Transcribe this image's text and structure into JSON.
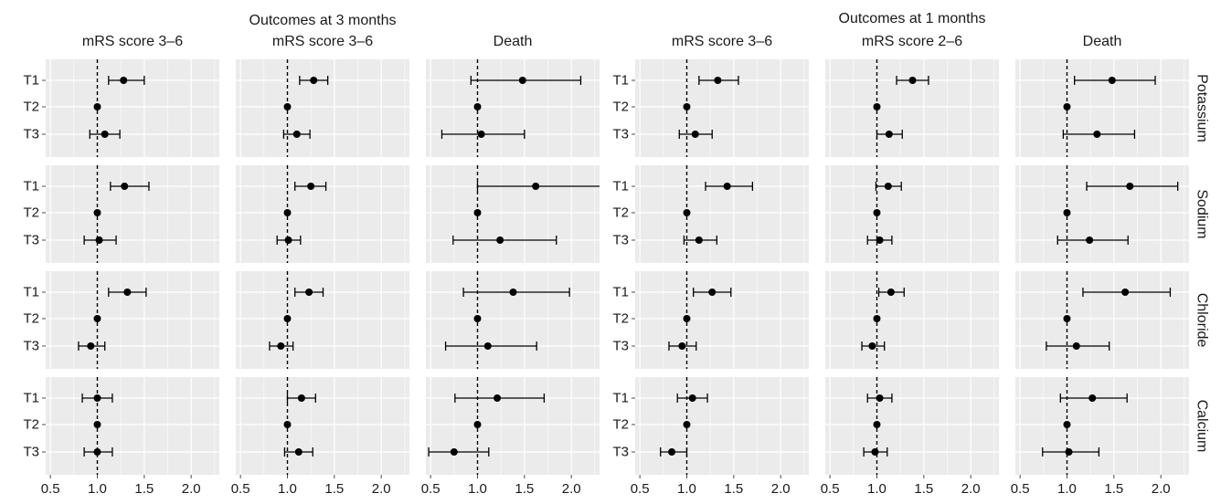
{
  "chart_data": {
    "type": "scatter",
    "subtype": "forest-plot-faceted",
    "group_titles": [
      "Outcomes at 3 months",
      "Outcomes at 1 months"
    ],
    "column_titles": [
      "mRS score 3–6",
      "mRS score 3–6",
      "Death",
      "mRS score 3–6",
      "mRS score 2–6",
      "Death"
    ],
    "row_strips": [
      "Potassium",
      "Sodium",
      "Chloride",
      "Calcium"
    ],
    "categories": [
      "T1",
      "T2",
      "T3"
    ],
    "x_ticks": [
      "0.5",
      "1.0",
      "1.5",
      "2.0"
    ],
    "xlim": [
      0.45,
      2.3
    ],
    "reference_line": 1.0,
    "grid": true,
    "colors": {
      "panel_bg": "#ebebeb",
      "grid": "#ffffff",
      "point": "#000000",
      "ref_line": "#000000",
      "text": "#1a1a1a",
      "tick": "#4d4d4d"
    },
    "panels": [
      [
        [
          [
            1.28,
            1.12,
            1.5
          ],
          [
            1.0,
            1.0,
            1.0
          ],
          [
            1.08,
            0.92,
            1.24
          ]
        ],
        [
          [
            1.29,
            1.14,
            1.55
          ],
          [
            1.0,
            1.0,
            1.0
          ],
          [
            1.02,
            0.86,
            1.2
          ]
        ],
        [
          [
            1.32,
            1.12,
            1.52
          ],
          [
            1.0,
            1.0,
            1.0
          ],
          [
            0.93,
            0.8,
            1.08
          ]
        ],
        [
          [
            1.0,
            0.84,
            1.16
          ],
          [
            1.0,
            1.0,
            1.0
          ],
          [
            1.0,
            0.86,
            1.16
          ]
        ]
      ],
      [
        [
          [
            1.28,
            1.13,
            1.43
          ],
          [
            1.0,
            1.0,
            1.0
          ],
          [
            1.1,
            0.96,
            1.24
          ]
        ],
        [
          [
            1.25,
            1.08,
            1.41
          ],
          [
            1.0,
            1.0,
            1.0
          ],
          [
            1.01,
            0.89,
            1.14
          ]
        ],
        [
          [
            1.23,
            1.08,
            1.38
          ],
          [
            1.0,
            1.0,
            1.0
          ],
          [
            0.93,
            0.81,
            1.06
          ]
        ],
        [
          [
            1.15,
            1.0,
            1.3
          ],
          [
            1.0,
            1.0,
            1.0
          ],
          [
            1.12,
            0.97,
            1.27
          ]
        ]
      ],
      [
        [
          [
            1.48,
            0.93,
            2.1
          ],
          [
            1.0,
            1.0,
            1.0
          ],
          [
            1.04,
            0.62,
            1.5
          ]
        ],
        [
          [
            1.62,
            1.0,
            2.33
          ],
          [
            1.0,
            1.0,
            1.0
          ],
          [
            1.24,
            0.74,
            1.84
          ]
        ],
        [
          [
            1.38,
            0.85,
            1.98
          ],
          [
            1.0,
            1.0,
            1.0
          ],
          [
            1.11,
            0.66,
            1.63
          ]
        ],
        [
          [
            1.21,
            0.76,
            1.71
          ],
          [
            1.0,
            1.0,
            1.0
          ],
          [
            0.75,
            0.48,
            1.12
          ]
        ]
      ],
      [
        [
          [
            1.33,
            1.13,
            1.55
          ],
          [
            1.0,
            1.0,
            1.0
          ],
          [
            1.09,
            0.92,
            1.27
          ]
        ],
        [
          [
            1.43,
            1.2,
            1.7
          ],
          [
            1.0,
            1.0,
            1.0
          ],
          [
            1.13,
            0.97,
            1.32
          ]
        ],
        [
          [
            1.27,
            1.07,
            1.47
          ],
          [
            1.0,
            1.0,
            1.0
          ],
          [
            0.95,
            0.81,
            1.1
          ]
        ],
        [
          [
            1.06,
            0.9,
            1.22
          ],
          [
            1.0,
            1.0,
            1.0
          ],
          [
            0.84,
            0.72,
            1.0
          ]
        ]
      ],
      [
        [
          [
            1.38,
            1.21,
            1.55
          ],
          [
            1.0,
            1.0,
            1.0
          ],
          [
            1.13,
            1.0,
            1.27
          ]
        ],
        [
          [
            1.12,
            0.99,
            1.26
          ],
          [
            1.0,
            1.0,
            1.0
          ],
          [
            1.03,
            0.9,
            1.16
          ]
        ],
        [
          [
            1.15,
            1.02,
            1.29
          ],
          [
            1.0,
            1.0,
            1.0
          ],
          [
            0.95,
            0.84,
            1.08
          ]
        ],
        [
          [
            1.03,
            0.9,
            1.16
          ],
          [
            1.0,
            1.0,
            1.0
          ],
          [
            0.98,
            0.86,
            1.11
          ]
        ]
      ],
      [
        [
          [
            1.48,
            1.08,
            1.94
          ],
          [
            1.0,
            1.0,
            1.0
          ],
          [
            1.32,
            0.96,
            1.72
          ]
        ],
        [
          [
            1.67,
            1.21,
            2.18
          ],
          [
            1.0,
            1.0,
            1.0
          ],
          [
            1.24,
            0.9,
            1.65
          ]
        ],
        [
          [
            1.62,
            1.17,
            2.1
          ],
          [
            1.0,
            1.0,
            1.0
          ],
          [
            1.1,
            0.78,
            1.45
          ]
        ],
        [
          [
            1.27,
            0.93,
            1.64
          ],
          [
            1.0,
            1.0,
            1.0
          ],
          [
            1.02,
            0.74,
            1.34
          ]
        ]
      ]
    ]
  }
}
